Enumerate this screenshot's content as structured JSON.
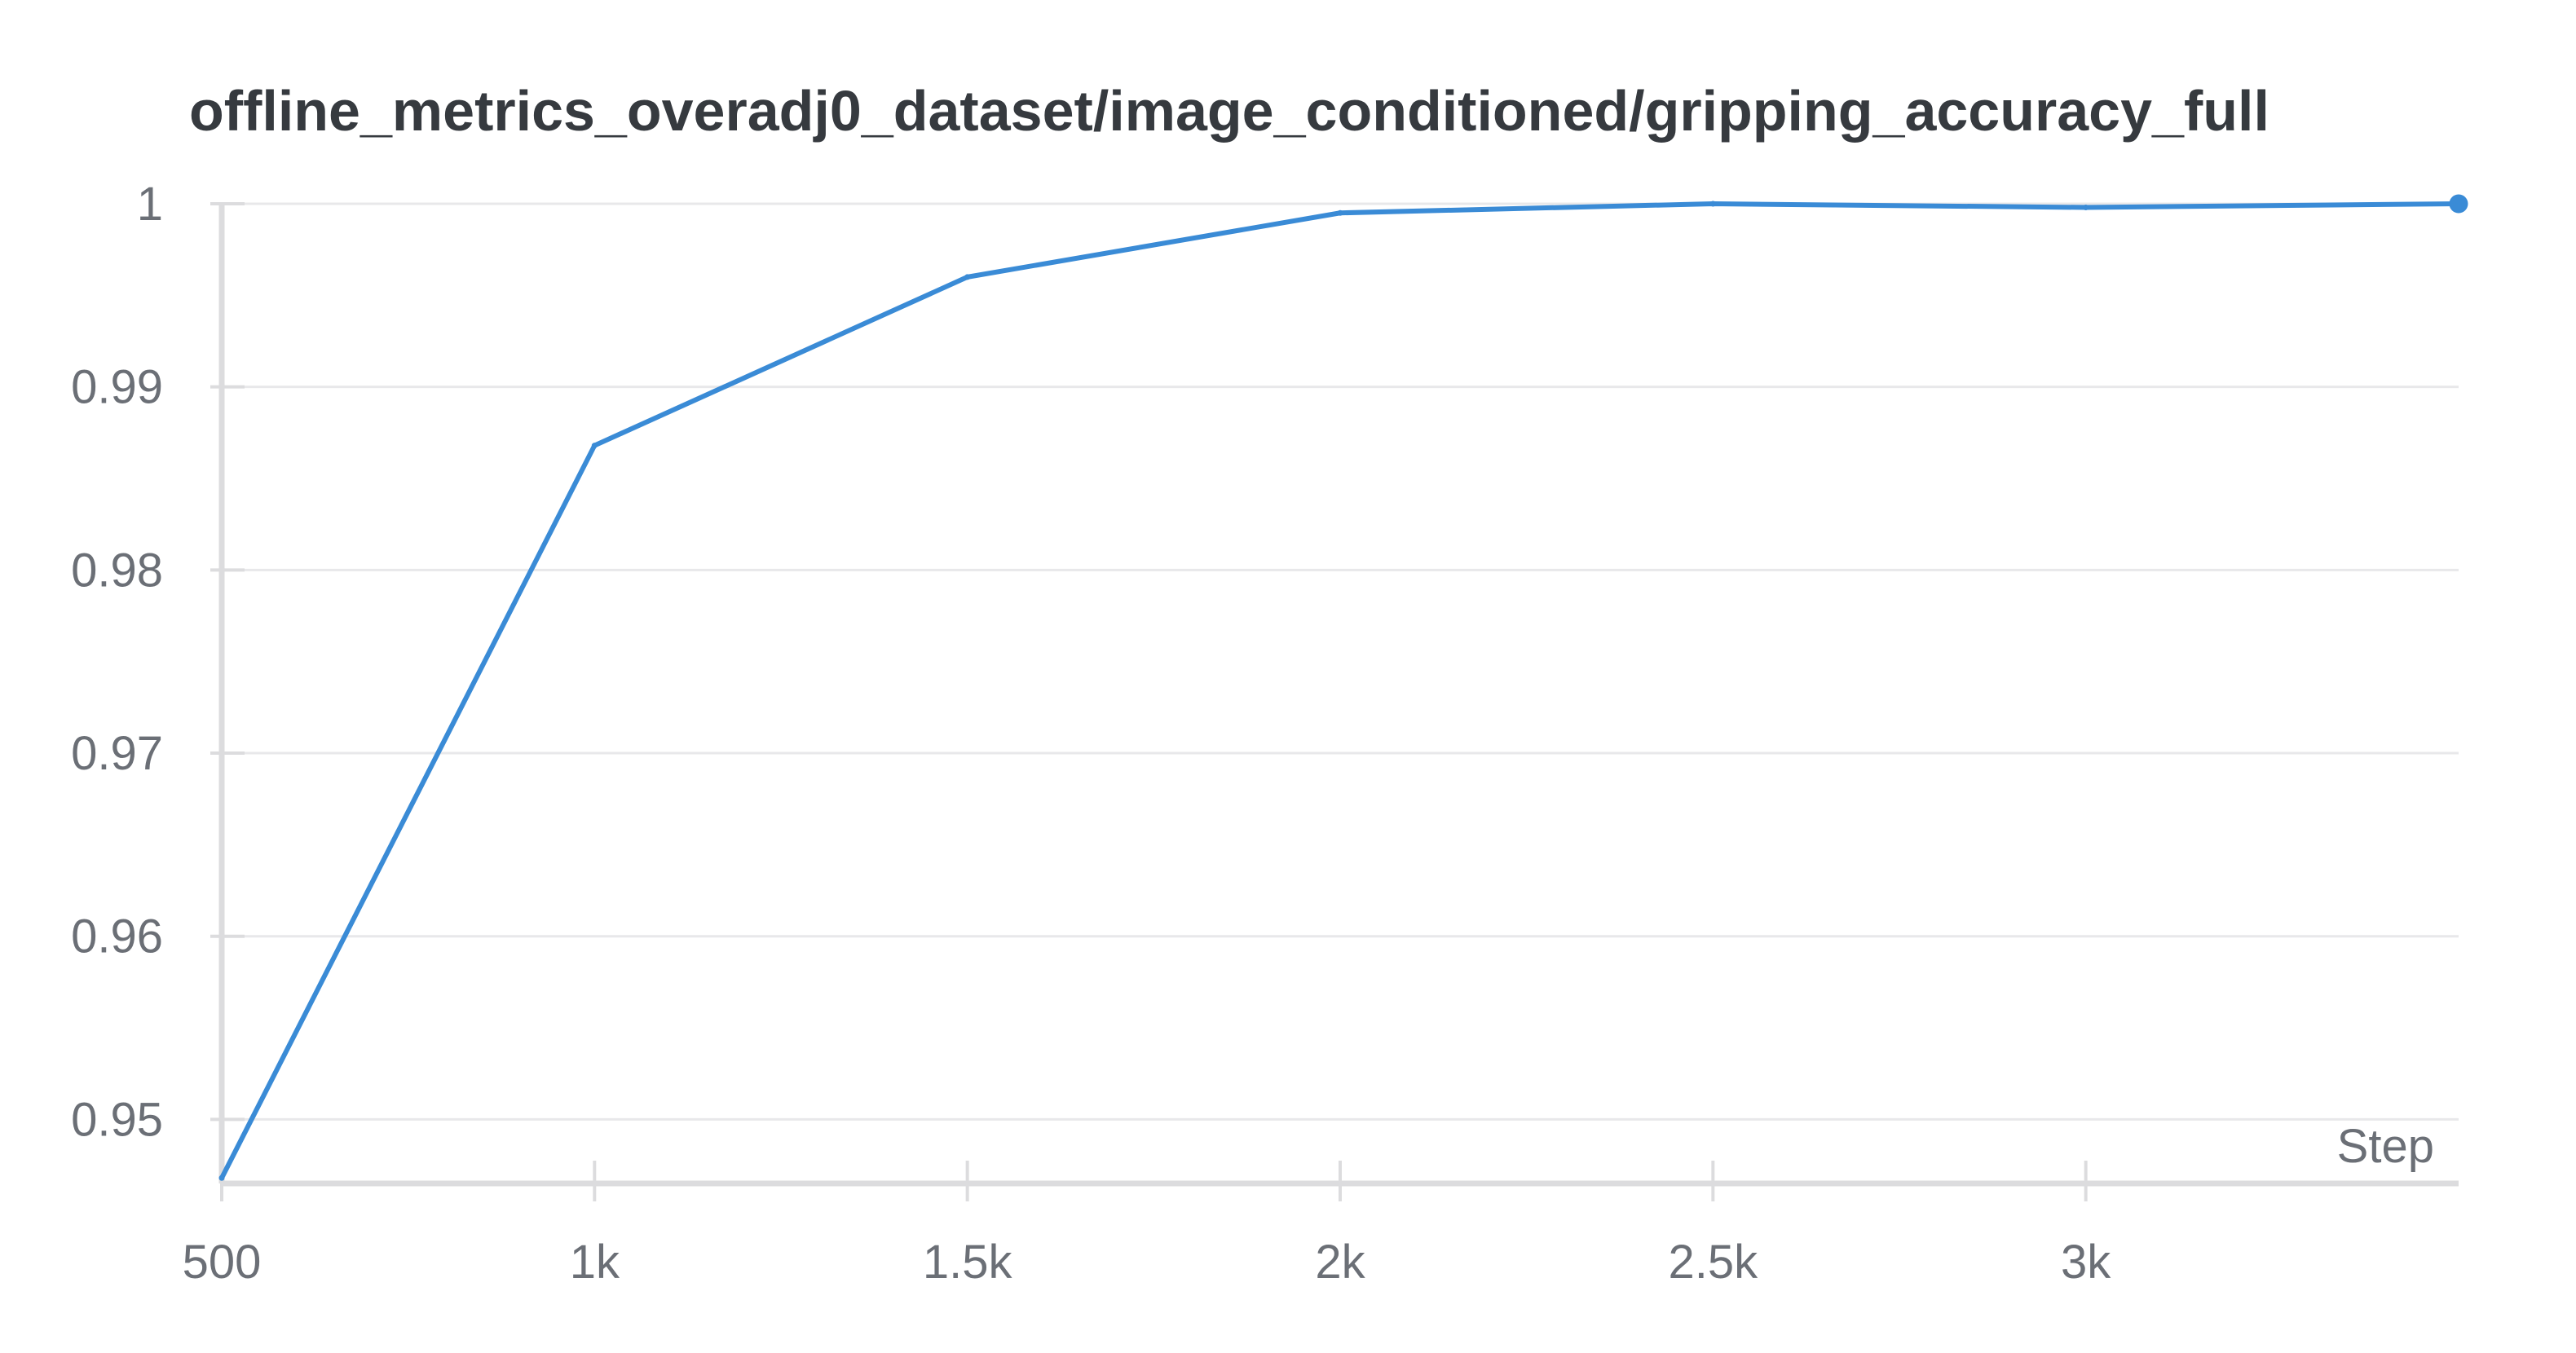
{
  "chart_data": {
    "type": "line",
    "title": "offline_metrics_overadj0_dataset/image_conditioned/gripping_accuracy_full",
    "xlabel": "Step",
    "ylabel": "",
    "xlim": [
      500,
      3500
    ],
    "ylim": [
      0.9465,
      1.0
    ],
    "x_ticks": [
      {
        "value": 500,
        "label": "500"
      },
      {
        "value": 1000,
        "label": "1k"
      },
      {
        "value": 1500,
        "label": "1.5k"
      },
      {
        "value": 2000,
        "label": "2k"
      },
      {
        "value": 2500,
        "label": "2.5k"
      },
      {
        "value": 3000,
        "label": "3k"
      }
    ],
    "y_ticks": [
      {
        "value": 0.95,
        "label": "0.95"
      },
      {
        "value": 0.96,
        "label": "0.96"
      },
      {
        "value": 0.97,
        "label": "0.97"
      },
      {
        "value": 0.98,
        "label": "0.98"
      },
      {
        "value": 0.99,
        "label": "0.99"
      },
      {
        "value": 1.0,
        "label": "1"
      }
    ],
    "grid": true,
    "legend": "none",
    "series": [
      {
        "color": "#3a8bd6",
        "x": [
          500,
          1000,
          1500,
          2000,
          2500,
          3000,
          3500
        ],
        "y": [
          0.9468,
          0.9868,
          0.996,
          0.9995,
          1.0,
          0.9998,
          1.0
        ]
      }
    ],
    "colors": {
      "line": "#3a8bd6",
      "grid": "#e8e8ea",
      "axis": "#dcdcde",
      "text": "#6b6f76",
      "title": "#363a3f"
    }
  }
}
